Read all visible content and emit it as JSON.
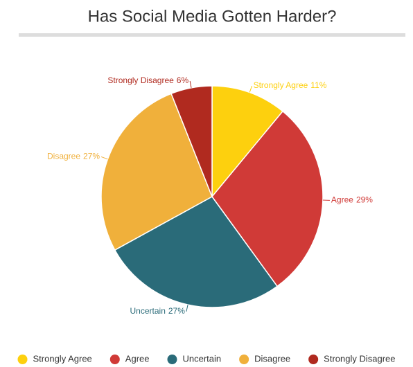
{
  "chart_data": {
    "type": "pie",
    "title": "Has Social Media Gotten Harder?",
    "categories": [
      "Strongly Agree",
      "Agree",
      "Uncertain",
      "Disagree",
      "Strongly Disagree"
    ],
    "values": [
      11,
      29,
      27,
      27,
      6
    ],
    "value_labels": [
      "11%",
      "29%",
      "27%",
      "27%",
      "6%"
    ],
    "colors": [
      "#fdd00e",
      "#d03a37",
      "#2a6b79",
      "#f0b03b",
      "#b02a1f"
    ]
  }
}
